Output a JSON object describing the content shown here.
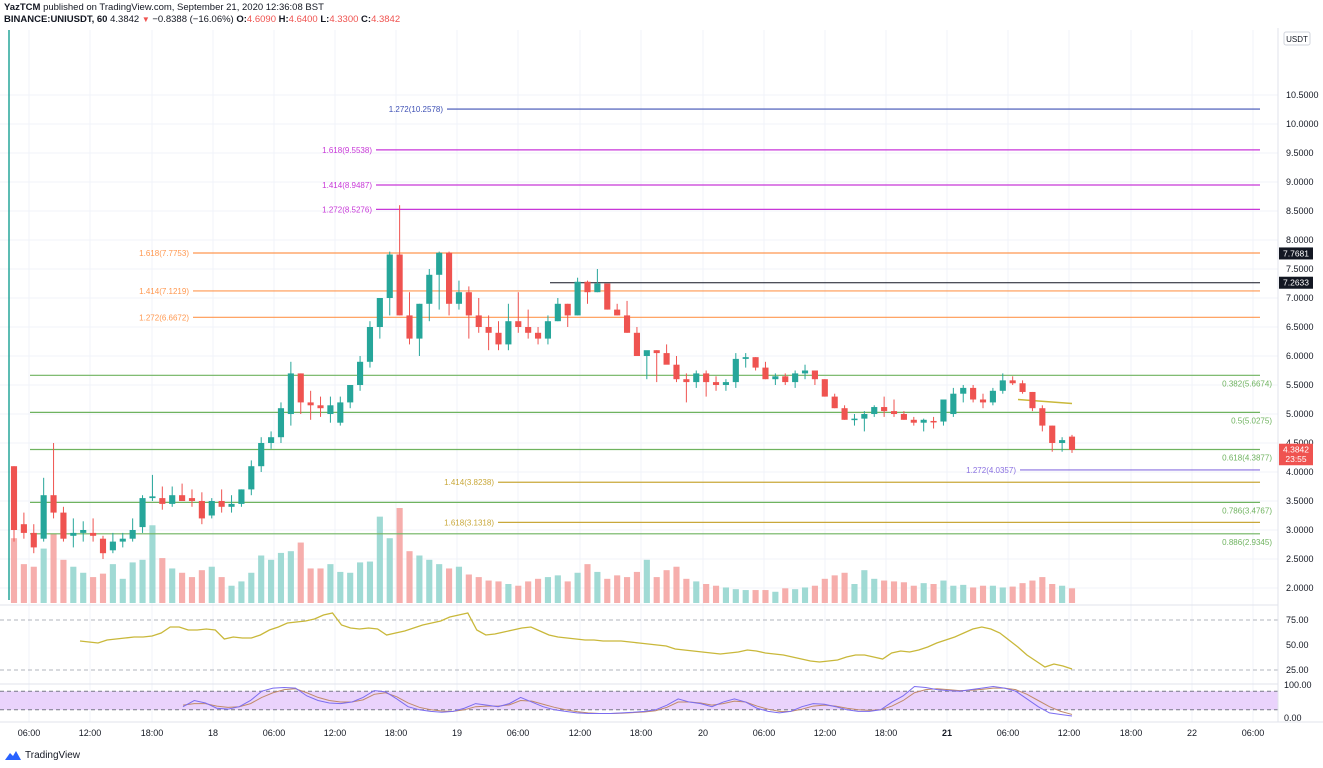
{
  "header": {
    "publisher": "YazTCM",
    "published_text": "published on TradingView.com, September 21, 2020 12:36:08 BST",
    "symbol": "BINANCE:UNIUSDT, 60",
    "last": "4.3842",
    "change": "−0.8388 (−16.06%)",
    "open_label": "O:",
    "open": "4.6090",
    "high_label": "H:",
    "high": "4.6400",
    "low_label": "L:",
    "low": "4.3300",
    "close_label": "C:",
    "close": "4.3842",
    "down_arrow": "▼"
  },
  "footer": {
    "brand": "TradingView"
  },
  "colors": {
    "up": "#26a69a",
    "down": "#ef5350",
    "fib_ext_blue": "#3f51b5",
    "fib_ext_magenta": "#c837d8",
    "fib_orange": "#ff9850",
    "fib_green": "#6fb35f",
    "fib_gold": "#c9a83a",
    "fib_purple": "#8a70e0",
    "rsi": "#c9b83a",
    "stoch_k": "#7b6cf0",
    "stoch_d": "#c08a6a",
    "stoch_band": "#e6cbfb"
  },
  "chart_data": {
    "type": "candlestick",
    "title": "BINANCE:UNIUSDT, 60",
    "currency": "USDT",
    "ylim": [
      1.75,
      10.85
    ],
    "y_ticks": [
      "10.5000",
      "10.0000",
      "9.5000",
      "9.0000",
      "8.5000",
      "8.0000",
      "7.5000",
      "7.0000",
      "6.5000",
      "6.0000",
      "5.5000",
      "5.0000",
      "4.5000",
      "4.0000",
      "3.5000",
      "3.0000",
      "2.5000",
      "2.0000"
    ],
    "x_ticks": [
      {
        "label": "06:00",
        "x": 29
      },
      {
        "label": "12:00",
        "x": 90
      },
      {
        "label": "18:00",
        "x": 152
      },
      {
        "label": "18",
        "x": 213,
        "bold": false
      },
      {
        "label": "06:00",
        "x": 274
      },
      {
        "label": "12:00",
        "x": 335
      },
      {
        "label": "18:00",
        "x": 396
      },
      {
        "label": "19",
        "x": 457
      },
      {
        "label": "06:00",
        "x": 518
      },
      {
        "label": "12:00",
        "x": 580
      },
      {
        "label": "18:00",
        "x": 641
      },
      {
        "label": "20",
        "x": 703
      },
      {
        "label": "06:00",
        "x": 764
      },
      {
        "label": "12:00",
        "x": 825
      },
      {
        "label": "18:00",
        "x": 886
      },
      {
        "label": "21",
        "x": 947,
        "bold": true
      },
      {
        "label": "06:00",
        "x": 1008
      },
      {
        "label": "12:00",
        "x": 1069
      },
      {
        "label": "18:00",
        "x": 1131
      },
      {
        "label": "22",
        "x": 1192
      },
      {
        "label": "06:00",
        "x": 1253
      }
    ],
    "price_labels": [
      {
        "value": "7.7681",
        "price": 7.7681,
        "bg": "#131722"
      },
      {
        "value": "7.2633",
        "price": 7.2633,
        "bg": "#131722"
      },
      {
        "value": "4.3842",
        "price": 4.3842,
        "bg": "#ef5350"
      },
      {
        "value": "23:55",
        "price": 4.22,
        "bg": "#ef5350"
      }
    ],
    "fib_levels": [
      {
        "label": "1.272(10.2578)",
        "price": 10.2578,
        "color": "#3f51b5",
        "x1": 447,
        "label_side": "left"
      },
      {
        "label": "1.618(9.5538)",
        "price": 9.5538,
        "color": "#c837d8",
        "x1": 376,
        "label_side": "left"
      },
      {
        "label": "1.414(8.9487)",
        "price": 8.9487,
        "color": "#c837d8",
        "x1": 376,
        "label_side": "left"
      },
      {
        "label": "1.272(8.5276)",
        "price": 8.5276,
        "color": "#c837d8",
        "x1": 376,
        "label_side": "left"
      },
      {
        "label": "1.618(7.7753)",
        "price": 7.7753,
        "color": "#ff9850",
        "x1": 193,
        "label_side": "left"
      },
      {
        "label": "1.414(7.1219)",
        "price": 7.1219,
        "color": "#ff9850",
        "x1": 193,
        "label_side": "left"
      },
      {
        "label": "1.272(6.6672)",
        "price": 6.6672,
        "color": "#ff9850",
        "x1": 193,
        "label_side": "left"
      },
      {
        "label": "0.382(5.6674)",
        "price": 5.6674,
        "color": "#6fb35f",
        "x1": 30,
        "label_side": "right"
      },
      {
        "label": "0.5(5.0275)",
        "price": 5.0275,
        "color": "#6fb35f",
        "x1": 30,
        "label_side": "right"
      },
      {
        "label": "0.618(4.3877)",
        "price": 4.3877,
        "color": "#6fb35f",
        "x1": 30,
        "label_side": "right"
      },
      {
        "label": "1.272(4.0357)",
        "price": 4.0357,
        "color": "#8a70e0",
        "x1": 1020,
        "label_side": "left"
      },
      {
        "label": "1.414(3.8238)",
        "price": 3.8238,
        "color": "#c9a83a",
        "x1": 498,
        "label_side": "left"
      },
      {
        "label": "0.786(3.4767)",
        "price": 3.4767,
        "color": "#6fb35f",
        "x1": 30,
        "label_side": "right"
      },
      {
        "label": "1.618(3.1318)",
        "price": 3.1318,
        "color": "#c9a83a",
        "x1": 498,
        "label_side": "left"
      },
      {
        "label": "0.886(2.9345)",
        "price": 2.9345,
        "color": "#6fb35f",
        "x1": 30,
        "label_side": "right"
      }
    ],
    "horizontal_lines": [
      {
        "price": 7.2633,
        "color": "#131722",
        "x1": 550
      }
    ],
    "candles": [
      [
        4.1,
        4.1,
        2.8,
        3.0
      ],
      [
        3.1,
        3.3,
        2.85,
        2.95
      ],
      [
        2.95,
        3.1,
        2.6,
        2.7
      ],
      [
        2.85,
        3.9,
        2.8,
        3.6
      ],
      [
        3.6,
        4.5,
        3.2,
        3.3
      ],
      [
        3.3,
        3.4,
        2.8,
        2.85
      ],
      [
        2.9,
        3.2,
        2.7,
        2.95
      ],
      [
        2.95,
        3.15,
        2.8,
        3.0
      ],
      [
        2.95,
        3.2,
        2.8,
        2.9
      ],
      [
        2.85,
        2.9,
        2.5,
        2.6
      ],
      [
        2.65,
        2.95,
        2.6,
        2.8
      ],
      [
        2.8,
        2.95,
        2.7,
        2.85
      ],
      [
        2.85,
        3.2,
        2.8,
        3.0
      ],
      [
        3.05,
        3.6,
        2.95,
        3.55
      ],
      [
        3.55,
        3.95,
        3.5,
        3.58
      ],
      [
        3.55,
        3.75,
        3.35,
        3.45
      ],
      [
        3.45,
        3.75,
        3.4,
        3.6
      ],
      [
        3.6,
        3.8,
        3.5,
        3.5
      ],
      [
        3.55,
        3.7,
        3.4,
        3.5
      ],
      [
        3.5,
        3.65,
        3.1,
        3.2
      ],
      [
        3.25,
        3.55,
        3.2,
        3.5
      ],
      [
        3.5,
        3.7,
        3.3,
        3.4
      ],
      [
        3.4,
        3.6,
        3.3,
        3.45
      ],
      [
        3.45,
        3.7,
        3.4,
        3.7
      ],
      [
        3.7,
        4.2,
        3.6,
        4.1
      ],
      [
        4.1,
        4.6,
        4.0,
        4.5
      ],
      [
        4.5,
        4.7,
        4.4,
        4.6
      ],
      [
        4.6,
        5.2,
        4.5,
        5.1
      ],
      [
        5.0,
        5.9,
        4.8,
        5.7
      ],
      [
        5.7,
        5.7,
        5.0,
        5.2
      ],
      [
        5.2,
        5.4,
        4.9,
        5.15
      ],
      [
        5.15,
        5.3,
        4.95,
        5.1
      ],
      [
        5.0,
        5.3,
        4.85,
        5.15
      ],
      [
        4.85,
        5.3,
        4.8,
        5.2
      ],
      [
        5.2,
        5.5,
        5.1,
        5.5
      ],
      [
        5.5,
        6.0,
        5.4,
        5.9
      ],
      [
        5.9,
        6.6,
        5.8,
        6.5
      ],
      [
        6.5,
        7.0,
        6.3,
        7.0
      ],
      [
        7.0,
        7.8,
        6.7,
        7.75
      ],
      [
        7.75,
        8.6,
        6.7,
        6.7
      ],
      [
        6.7,
        7.1,
        6.2,
        6.3
      ],
      [
        6.3,
        6.9,
        6.0,
        6.9
      ],
      [
        6.9,
        7.5,
        6.6,
        7.4
      ],
      [
        7.4,
        7.8,
        6.8,
        7.78
      ],
      [
        7.78,
        7.8,
        6.7,
        6.9
      ],
      [
        6.9,
        7.3,
        6.8,
        7.1
      ],
      [
        7.1,
        7.2,
        6.3,
        6.7
      ],
      [
        6.7,
        7.0,
        6.4,
        6.5
      ],
      [
        6.5,
        6.7,
        6.1,
        6.4
      ],
      [
        6.4,
        6.6,
        6.1,
        6.2
      ],
      [
        6.2,
        6.9,
        6.1,
        6.6
      ],
      [
        6.6,
        7.1,
        6.4,
        6.5
      ],
      [
        6.5,
        6.8,
        6.3,
        6.4
      ],
      [
        6.4,
        6.5,
        6.2,
        6.3
      ],
      [
        6.3,
        6.7,
        6.2,
        6.6
      ],
      [
        6.6,
        7.0,
        6.6,
        6.9
      ],
      [
        6.9,
        6.9,
        6.5,
        6.7
      ],
      [
        6.7,
        7.35,
        6.7,
        7.28
      ],
      [
        7.28,
        7.3,
        6.9,
        7.1
      ],
      [
        7.1,
        7.5,
        7.1,
        7.25
      ],
      [
        7.25,
        7.25,
        6.8,
        6.8
      ],
      [
        6.8,
        6.9,
        6.7,
        6.7
      ],
      [
        6.7,
        6.95,
        6.4,
        6.4
      ],
      [
        6.4,
        6.5,
        6.0,
        6.0
      ],
      [
        6.0,
        6.0,
        5.6,
        6.1
      ],
      [
        6.1,
        6.1,
        5.55,
        6.05
      ],
      [
        6.05,
        6.2,
        5.9,
        5.85
      ],
      [
        5.85,
        6.0,
        5.55,
        5.6
      ],
      [
        5.6,
        5.7,
        5.2,
        5.55
      ],
      [
        5.55,
        5.75,
        5.45,
        5.7
      ],
      [
        5.7,
        5.75,
        5.3,
        5.55
      ],
      [
        5.55,
        5.65,
        5.4,
        5.5
      ],
      [
        5.5,
        5.6,
        5.4,
        5.55
      ],
      [
        5.55,
        6.05,
        5.45,
        5.95
      ],
      [
        5.95,
        6.05,
        5.8,
        5.98
      ],
      [
        5.98,
        5.98,
        5.75,
        5.8
      ],
      [
        5.8,
        5.9,
        5.6,
        5.6
      ],
      [
        5.6,
        5.7,
        5.5,
        5.65
      ],
      [
        5.65,
        5.7,
        5.5,
        5.55
      ],
      [
        5.55,
        5.75,
        5.45,
        5.7
      ],
      [
        5.7,
        5.85,
        5.6,
        5.75
      ],
      [
        5.75,
        5.75,
        5.5,
        5.6
      ],
      [
        5.6,
        5.6,
        5.3,
        5.3
      ],
      [
        5.3,
        5.35,
        5.1,
        5.1
      ],
      [
        5.1,
        5.15,
        4.9,
        4.9
      ],
      [
        4.9,
        5.0,
        4.8,
        4.92
      ],
      [
        4.92,
        5.05,
        4.7,
        5.0
      ],
      [
        5.0,
        5.15,
        4.95,
        5.12
      ],
      [
        5.12,
        5.3,
        4.95,
        5.05
      ],
      [
        5.05,
        5.25,
        4.95,
        5.0
      ],
      [
        5.0,
        5.05,
        4.9,
        4.9
      ],
      [
        4.9,
        4.95,
        4.8,
        4.85
      ],
      [
        4.85,
        4.92,
        4.7,
        4.9
      ],
      [
        4.88,
        4.95,
        4.75,
        4.87
      ],
      [
        4.87,
        5.05,
        4.8,
        5.25
      ],
      [
        5.0,
        5.45,
        4.95,
        5.35
      ],
      [
        5.35,
        5.5,
        5.2,
        5.45
      ],
      [
        5.45,
        5.5,
        5.2,
        5.25
      ],
      [
        5.25,
        5.35,
        5.1,
        5.2
      ],
      [
        5.2,
        5.45,
        5.15,
        5.4
      ],
      [
        5.4,
        5.7,
        5.35,
        5.58
      ],
      [
        5.58,
        5.65,
        5.5,
        5.53
      ],
      [
        5.53,
        5.58,
        5.35,
        5.38
      ],
      [
        5.38,
        5.38,
        5.05,
        5.1
      ],
      [
        5.1,
        5.15,
        4.7,
        4.8
      ],
      [
        4.8,
        4.8,
        4.35,
        4.5
      ],
      [
        4.5,
        4.6,
        4.35,
        4.55
      ],
      [
        4.61,
        4.64,
        4.33,
        4.38
      ]
    ],
    "volume": [
      0.75,
      0.45,
      0.42,
      0.63,
      0.8,
      0.5,
      0.42,
      0.35,
      0.3,
      0.34,
      0.45,
      0.28,
      0.47,
      0.5,
      0.9,
      0.52,
      0.4,
      0.35,
      0.3,
      0.38,
      0.42,
      0.3,
      0.2,
      0.25,
      0.35,
      0.55,
      0.5,
      0.58,
      0.6,
      0.7,
      0.4,
      0.4,
      0.45,
      0.36,
      0.35,
      0.47,
      0.48,
      1.0,
      0.75,
      1.1,
      0.6,
      0.55,
      0.5,
      0.45,
      0.4,
      0.42,
      0.33,
      0.3,
      0.26,
      0.25,
      0.22,
      0.2,
      0.25,
      0.28,
      0.3,
      0.32,
      0.25,
      0.35,
      0.45,
      0.36,
      0.28,
      0.32,
      0.3,
      0.36,
      0.5,
      0.3,
      0.38,
      0.42,
      0.28,
      0.25,
      0.22,
      0.2,
      0.18,
      0.16,
      0.15,
      0.15,
      0.15,
      0.13,
      0.17,
      0.16,
      0.18,
      0.2,
      0.28,
      0.32,
      0.35,
      0.22,
      0.38,
      0.28,
      0.26,
      0.25,
      0.24,
      0.2,
      0.23,
      0.22,
      0.26,
      0.2,
      0.21,
      0.18,
      0.2,
      0.2,
      0.18,
      0.19,
      0.23,
      0.26,
      0.3,
      0.22,
      0.2,
      0.17
    ],
    "rsi": {
      "ticks": [
        "75.00",
        "50.00",
        "25.00"
      ],
      "values": [
        54,
        53,
        52,
        55,
        56,
        57,
        58,
        58,
        59,
        62,
        68,
        68,
        65,
        65,
        66,
        65,
        56,
        58,
        57,
        57,
        60,
        65,
        68,
        72,
        73,
        74,
        76,
        80,
        82,
        70,
        67,
        66,
        67,
        66,
        60,
        62,
        64,
        67,
        70,
        72,
        74,
        78,
        80,
        82,
        65,
        60,
        61,
        63,
        65,
        67,
        68,
        64,
        60,
        58,
        57,
        56,
        55,
        55,
        54,
        54,
        54,
        53,
        52,
        51,
        50,
        49,
        46,
        45,
        44,
        43,
        42,
        41,
        42,
        43,
        45,
        44,
        42,
        41,
        40,
        38,
        36,
        34,
        33,
        34,
        35,
        38,
        40,
        40,
        38,
        36,
        42,
        44,
        43,
        45,
        48,
        52,
        55,
        58,
        62,
        66,
        68,
        66,
        62,
        55,
        48,
        40,
        34,
        28,
        31,
        29,
        26
      ]
    },
    "stoch_rsi": {
      "ticks": [
        "100.00",
        "0.00"
      ],
      "k": [
        30,
        50,
        42,
        25,
        22,
        30,
        50,
        80,
        90,
        92,
        90,
        65,
        50,
        42,
        40,
        45,
        60,
        82,
        78,
        55,
        30,
        20,
        15,
        12,
        15,
        25,
        40,
        35,
        30,
        40,
        60,
        45,
        30,
        20,
        15,
        10,
        8,
        8,
        8,
        10,
        12,
        15,
        20,
        35,
        55,
        45,
        40,
        30,
        45,
        55,
        45,
        25,
        15,
        10,
        15,
        30,
        40,
        38,
        30,
        20,
        15,
        15,
        20,
        45,
        65,
        95,
        92,
        85,
        82,
        80,
        85,
        90,
        95,
        90,
        80,
        55,
        30,
        10,
        5,
        0
      ],
      "d": [
        35,
        40,
        40,
        32,
        28,
        30,
        40,
        60,
        75,
        85,
        88,
        75,
        60,
        50,
        45,
        45,
        52,
        70,
        75,
        62,
        42,
        28,
        20,
        16,
        15,
        20,
        30,
        32,
        32,
        36,
        50,
        48,
        38,
        28,
        20,
        14,
        10,
        8,
        8,
        9,
        11,
        13,
        17,
        28,
        45,
        45,
        42,
        35,
        40,
        48,
        45,
        32,
        22,
        15,
        15,
        22,
        32,
        35,
        32,
        25,
        20,
        18,
        20,
        32,
        50,
        75,
        85,
        88,
        85,
        82,
        83,
        86,
        90,
        90,
        85,
        70,
        50,
        30,
        15,
        5
      ]
    }
  }
}
